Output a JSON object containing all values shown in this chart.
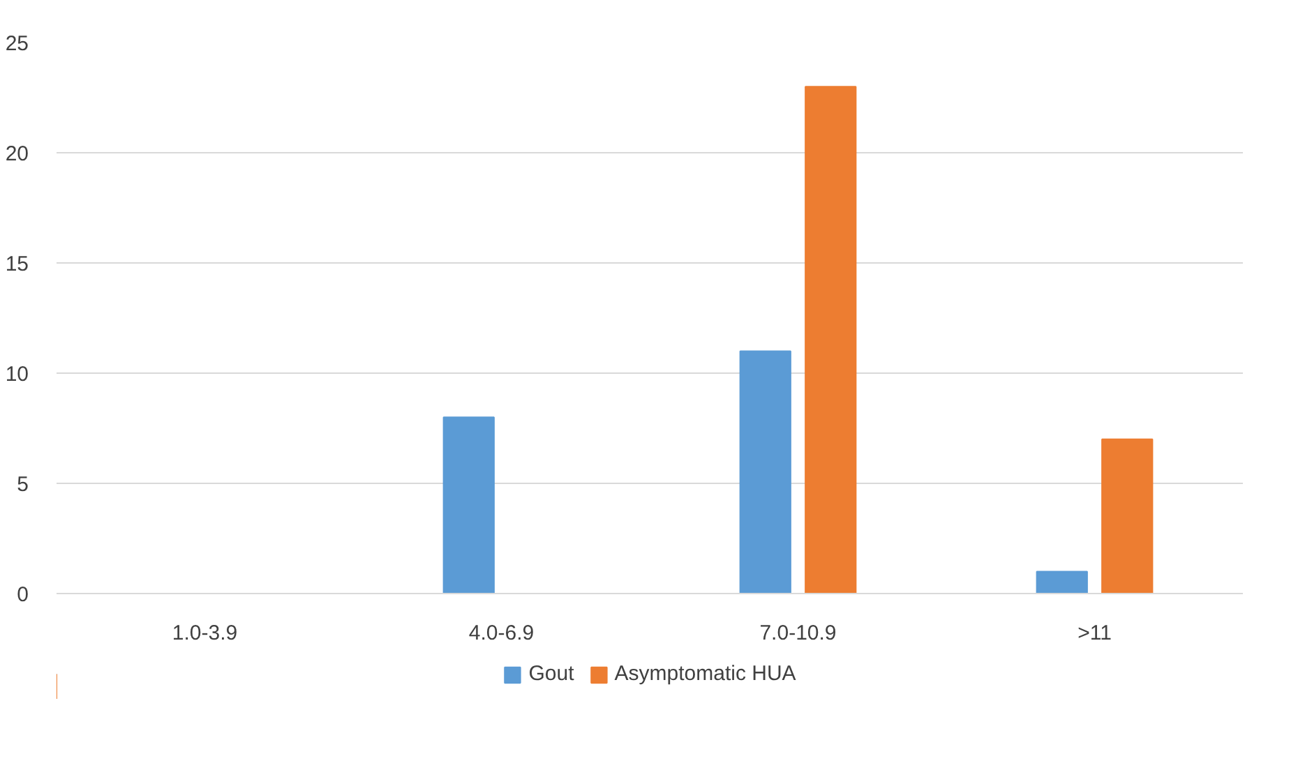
{
  "chart_data": {
    "type": "bar",
    "categories": [
      "1.0-3.9",
      "4.0-6.9",
      "7.0-10.9",
      ">11"
    ],
    "series": [
      {
        "name": "Gout",
        "color": "#5b9bd5",
        "values": [
          0,
          8,
          11,
          1
        ]
      },
      {
        "name": "Asymptomatic HUA",
        "color": "#ed7d31",
        "values": [
          0,
          0,
          23,
          7
        ]
      }
    ],
    "ylim": [
      0,
      25
    ],
    "yticks": [
      0,
      5,
      10,
      15,
      20,
      25
    ],
    "grid": "y",
    "legend": "bottom"
  }
}
